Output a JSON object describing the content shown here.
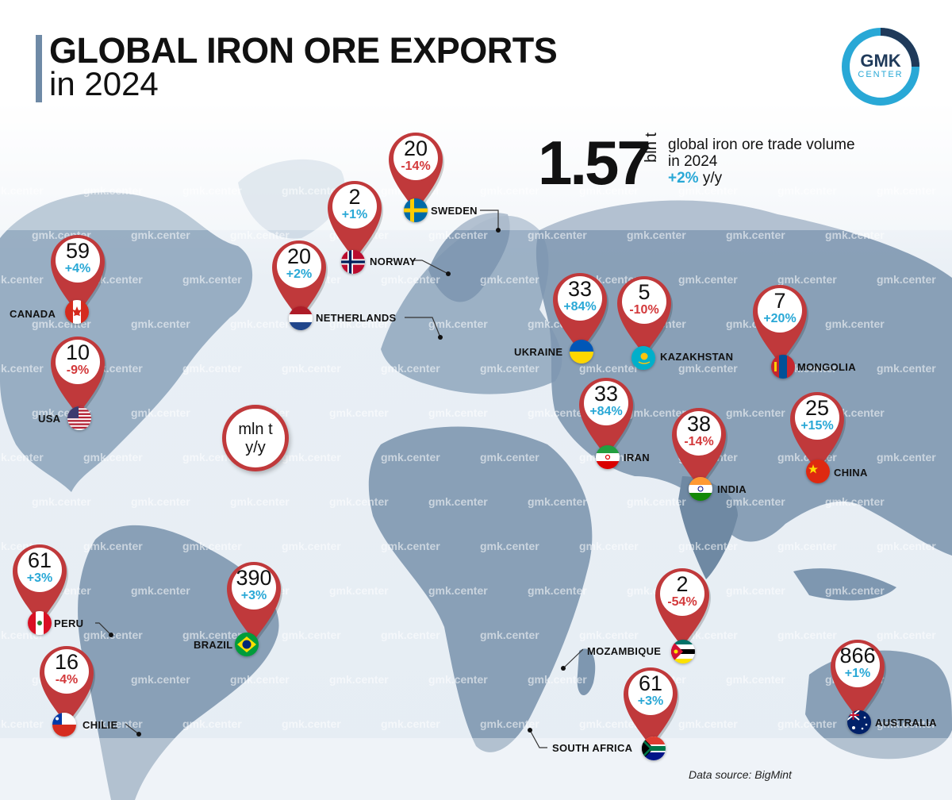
{
  "title": {
    "line1": "GLOBAL IRON ORE EXPORTS",
    "line2": "in 2024"
  },
  "logo": {
    "main": "GMK",
    "sub": "CENTER"
  },
  "summary": {
    "value": "1.57",
    "unit": "bln t",
    "line1": "global iron ore trade volume",
    "line2": "in 2024",
    "change": "+2%",
    "change_suffix": "y/y"
  },
  "legend": {
    "line1": "mln t",
    "line2": "y/y"
  },
  "watermark": "gmk.center",
  "source": "Data source: BigMint",
  "colors": {
    "positive": "#29a8d6",
    "negative": "#d3393b",
    "pin_border": "#c0393b",
    "land": "#7e97b0"
  },
  "pins": [
    {
      "id": "canada",
      "country": "CANADA",
      "value": "59",
      "change": "+4%",
      "sign": "pos"
    },
    {
      "id": "usa",
      "country": "USA",
      "value": "10",
      "change": "-9%",
      "sign": "neg"
    },
    {
      "id": "peru",
      "country": "PERU",
      "value": "61",
      "change": "+3%",
      "sign": "pos"
    },
    {
      "id": "chilie",
      "country": "CHILIE",
      "value": "16",
      "change": "-4%",
      "sign": "neg"
    },
    {
      "id": "brazil",
      "country": "BRAZIL",
      "value": "390",
      "change": "+3%",
      "sign": "pos"
    },
    {
      "id": "netherlands",
      "country": "NETHERLANDS",
      "value": "20",
      "change": "+2%",
      "sign": "pos"
    },
    {
      "id": "norway",
      "country": "NORWAY",
      "value": "2",
      "change": "+1%",
      "sign": "pos"
    },
    {
      "id": "sweden",
      "country": "SWEDEN",
      "value": "20",
      "change": "-14%",
      "sign": "neg"
    },
    {
      "id": "ukraine",
      "country": "UKRAINE",
      "value": "33",
      "change": "+84%",
      "sign": "pos"
    },
    {
      "id": "kazakhstan",
      "country": "KAZAKHSTAN",
      "value": "5",
      "change": "-10%",
      "sign": "neg"
    },
    {
      "id": "mongolia",
      "country": "MONGOLIA",
      "value": "7",
      "change": "+20%",
      "sign": "pos"
    },
    {
      "id": "iran",
      "country": "IRAN",
      "value": "33",
      "change": "+84%",
      "sign": "pos"
    },
    {
      "id": "india",
      "country": "INDIA",
      "value": "38",
      "change": "-14%",
      "sign": "neg"
    },
    {
      "id": "china",
      "country": "CHINA",
      "value": "25",
      "change": "+15%",
      "sign": "pos"
    },
    {
      "id": "mozambique",
      "country": "MOZAMBIQUE",
      "value": "2",
      "change": "-54%",
      "sign": "neg"
    },
    {
      "id": "south_africa",
      "country": "SOUTH AFRICA",
      "value": "61",
      "change": "+3%",
      "sign": "pos"
    },
    {
      "id": "australia",
      "country": "AUSTRALIA",
      "value": "866",
      "change": "+1%",
      "sign": "pos"
    }
  ]
}
